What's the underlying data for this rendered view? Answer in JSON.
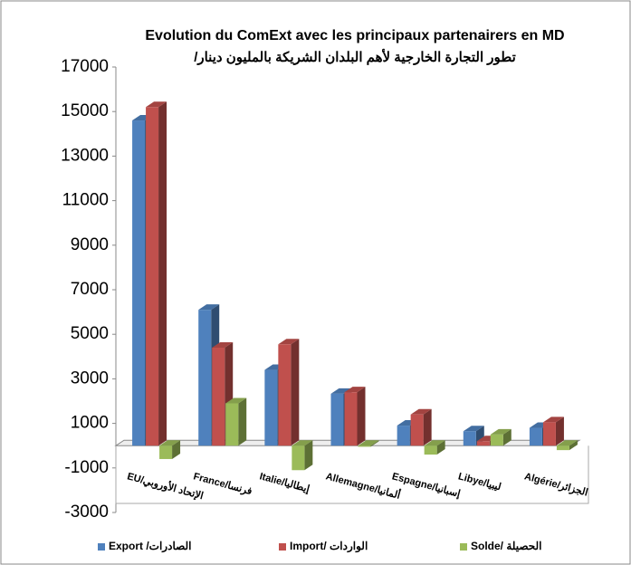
{
  "chart_data": {
    "type": "bar3d",
    "title": "Evolution du ComExt avec les principaux partenairers en MD",
    "subtitle": "تطور التجارة الخارجية لأهم البلدان الشريكة بالمليون دينار/",
    "categories": [
      "EU/الإتحاد الأوروبي",
      "France/فرنسا",
      "Italie/إيطاليا",
      "Allemagne/ألمانيا",
      "Espagne/إسبانيا",
      "Libye/ليبيا",
      "Algérie/الجزائر"
    ],
    "series": [
      {
        "name": "Export /الصادرات",
        "color": "#4f81bd",
        "values": [
          14600,
          6100,
          3400,
          2330,
          900,
          650,
          800
        ]
      },
      {
        "name": "Import/ الواردات",
        "color": "#c0504d",
        "values": [
          15200,
          4400,
          4550,
          2400,
          1400,
          200,
          1050
        ]
      },
      {
        "name": "Solde/ الحصيلة",
        "color": "#9bbb59",
        "values": [
          -600,
          1900,
          -1100,
          -50,
          -400,
          500,
          -200
        ]
      }
    ],
    "ylim": [
      -3000,
      17000
    ],
    "yticks": [
      -3000,
      -1000,
      1000,
      3000,
      5000,
      7000,
      9000,
      11000,
      13000,
      15000,
      17000
    ]
  }
}
